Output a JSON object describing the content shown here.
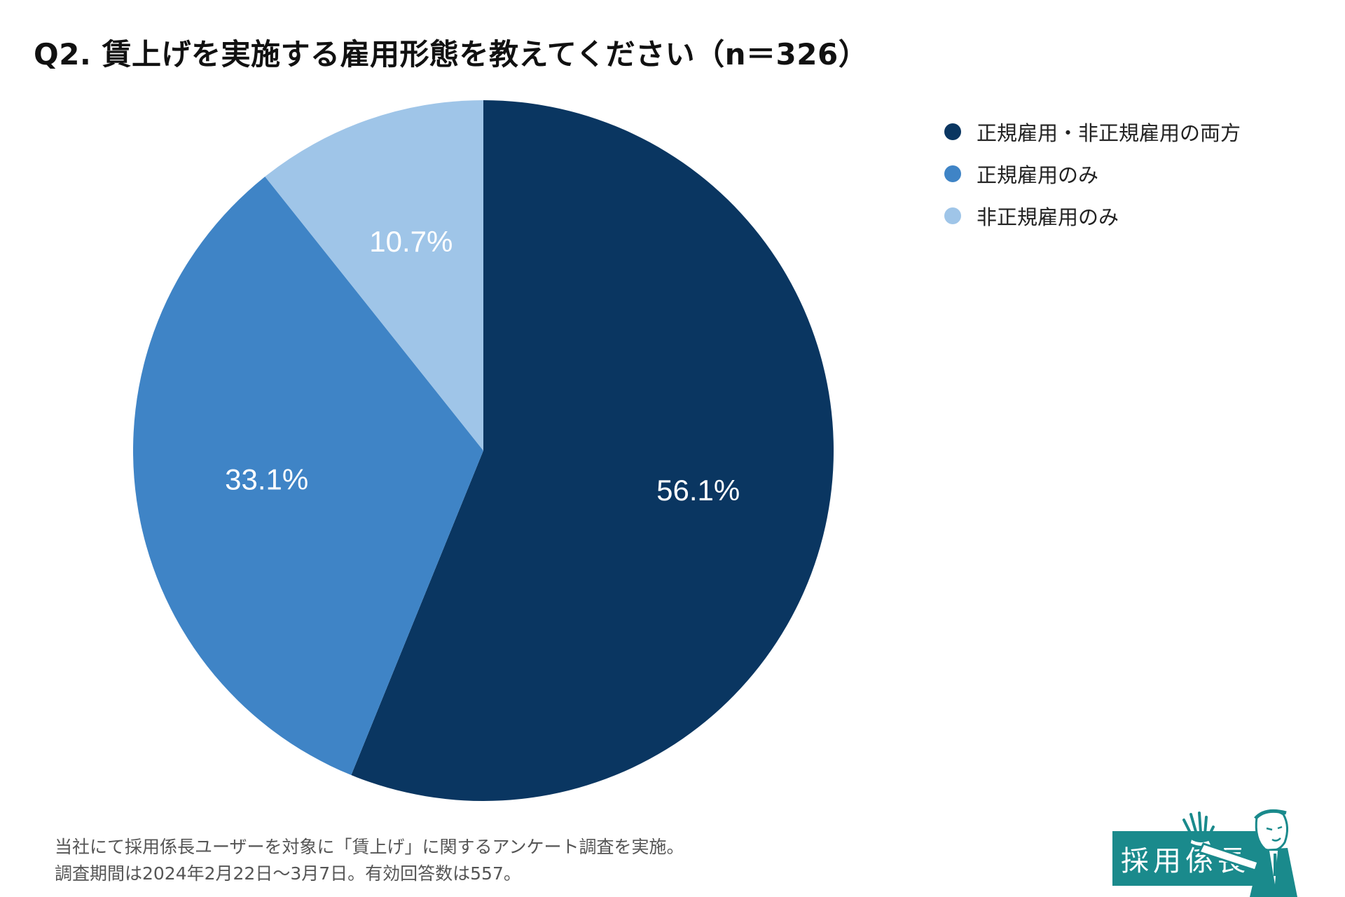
{
  "chart_data": {
    "type": "pie",
    "title": "Q2. 賃上げを実施する雇用形態を教えてください（n＝326）",
    "slices": [
      {
        "label": "正規雇用・非正規雇用の両方",
        "value": 56.1,
        "value_label": "56.1%",
        "color": "#0a3661"
      },
      {
        "label": "正規雇用のみ",
        "value": 33.1,
        "value_label": "33.1%",
        "color": "#3f84c6"
      },
      {
        "label": "非正規雇用のみ",
        "value": 10.7,
        "value_label": "10.7%",
        "color": "#9fc5e8"
      }
    ],
    "start_angle": "12 o'clock",
    "direction": "clockwise",
    "legend_position": "top-right"
  },
  "footnote": {
    "line1": "当社にて採用係長ユーザーを対象に「賃上げ」に関するアンケート調査を実施。",
    "line2": "調査期間は2024年2月22日〜3月7日。有効回答数は557。"
  },
  "logo": {
    "text": "採用係長"
  }
}
